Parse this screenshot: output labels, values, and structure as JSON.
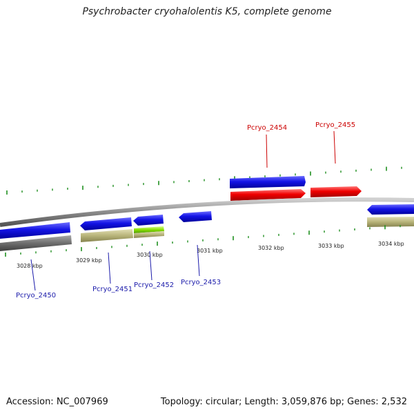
{
  "title": "Psychrobacter cryohalolentis K5, complete genome",
  "footer": {
    "accession": "Accession: NC_007969",
    "stats": "Topology: circular; Length: 3,059,876 bp; Genes: 2,532"
  },
  "colors": {
    "forward_gene": "#e00000",
    "reverse_gene": "#1414e6",
    "cog_khaki": "#b8b47a",
    "cog_gray": "#6e6e6e",
    "cog_green": "#88e000",
    "backbone": "#8a8a8a",
    "gc_skew_tick": "#1f8f1f",
    "label_forward": "#cc0000",
    "label_reverse": "#1a1aaa"
  },
  "scale": {
    "ticks": [
      "3028 kbp",
      "3029 kbp",
      "3030 kbp",
      "3031 kbp",
      "3032 kbp",
      "3033 kbp",
      "3034 kbp"
    ]
  },
  "genes": [
    {
      "name": "Pcryo_2450",
      "strand": "reverse"
    },
    {
      "name": "Pcryo_2451",
      "strand": "reverse"
    },
    {
      "name": "Pcryo_2452",
      "strand": "reverse"
    },
    {
      "name": "Pcryo_2453",
      "strand": "reverse"
    },
    {
      "name": "Pcryo_2454",
      "strand": "forward"
    },
    {
      "name": "Pcryo_2455",
      "strand": "forward"
    }
  ]
}
